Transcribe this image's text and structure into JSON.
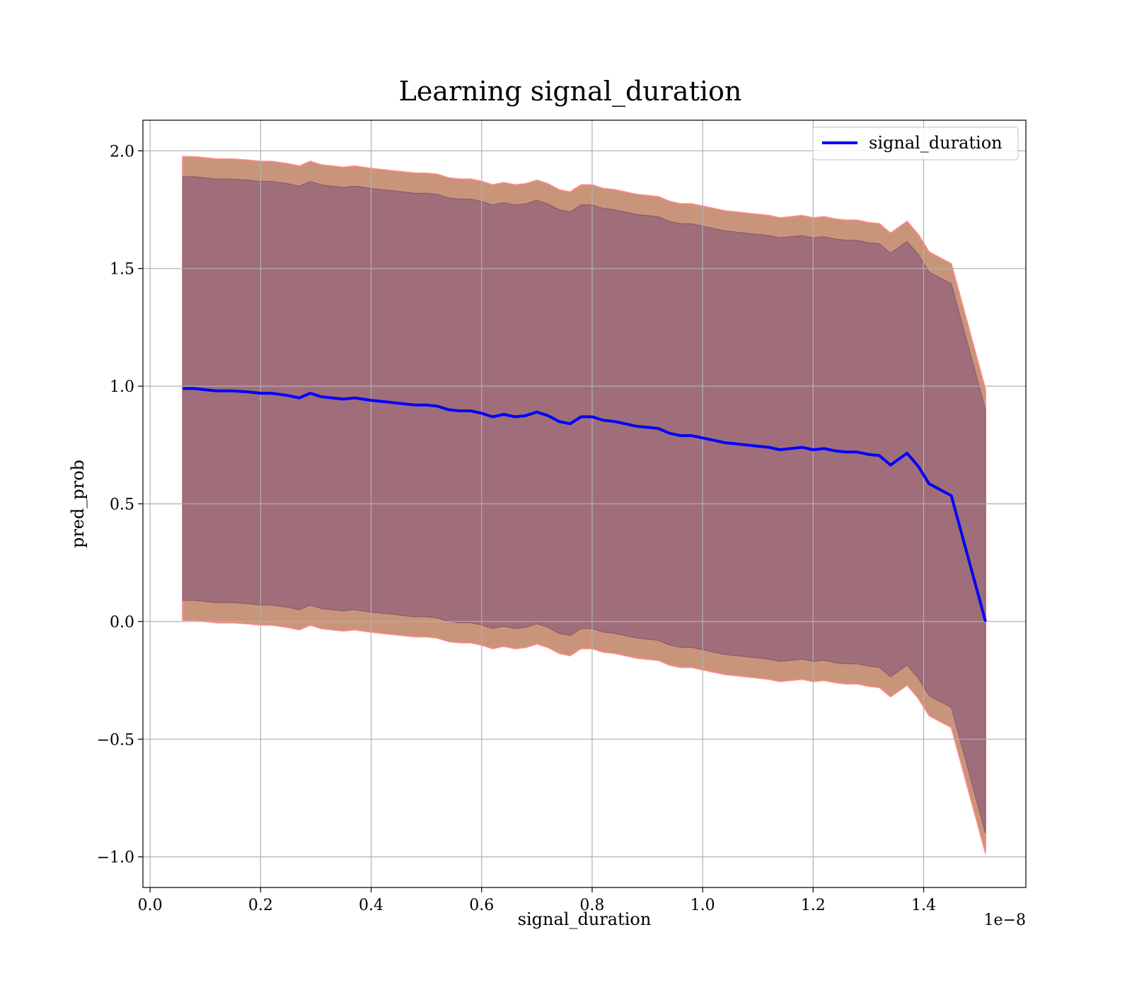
{
  "chart_data": {
    "type": "line",
    "title": "Learning signal_duration",
    "xlabel": "signal_duration",
    "ylabel": "pred_prob",
    "x_offset_label": "1e−8",
    "xlim": [
      -0.013,
      1.585
    ],
    "ylim": [
      -1.13,
      2.13
    ],
    "grid": true,
    "legend": {
      "position": "top-right",
      "entries": [
        "signal_duration"
      ]
    },
    "xticks": [
      {
        "value": 0.0,
        "label": "0.0"
      },
      {
        "value": 0.2,
        "label": "0.2"
      },
      {
        "value": 0.4,
        "label": "0.4"
      },
      {
        "value": 0.6,
        "label": "0.6"
      },
      {
        "value": 0.8,
        "label": "0.8"
      },
      {
        "value": 1.0,
        "label": "1.0"
      },
      {
        "value": 1.2,
        "label": "1.2"
      },
      {
        "value": 1.4,
        "label": "1.4"
      }
    ],
    "yticks": [
      {
        "value": -1.0,
        "label": "−1.0"
      },
      {
        "value": -0.5,
        "label": "−0.5"
      },
      {
        "value": 0.0,
        "label": "0.0"
      },
      {
        "value": 0.5,
        "label": "0.5"
      },
      {
        "value": 1.0,
        "label": "1.0"
      },
      {
        "value": 1.5,
        "label": "1.5"
      },
      {
        "value": 2.0,
        "label": "2.0"
      }
    ],
    "series": [
      {
        "name": "signal_duration",
        "color": "#0000ff",
        "x": [
          0.059,
          0.08,
          0.1,
          0.12,
          0.15,
          0.18,
          0.2,
          0.22,
          0.25,
          0.27,
          0.29,
          0.31,
          0.33,
          0.35,
          0.37,
          0.4,
          0.42,
          0.44,
          0.46,
          0.48,
          0.5,
          0.52,
          0.54,
          0.56,
          0.58,
          0.6,
          0.62,
          0.64,
          0.66,
          0.68,
          0.7,
          0.72,
          0.74,
          0.76,
          0.78,
          0.8,
          0.82,
          0.84,
          0.86,
          0.88,
          0.9,
          0.92,
          0.94,
          0.96,
          0.98,
          1.0,
          1.02,
          1.04,
          1.06,
          1.08,
          1.1,
          1.12,
          1.14,
          1.16,
          1.18,
          1.2,
          1.22,
          1.24,
          1.26,
          1.28,
          1.3,
          1.32,
          1.34,
          1.37,
          1.39,
          1.41,
          1.45,
          1.512
        ],
        "values": [
          0.99,
          0.99,
          0.985,
          0.98,
          0.98,
          0.975,
          0.97,
          0.97,
          0.96,
          0.95,
          0.97,
          0.955,
          0.95,
          0.945,
          0.95,
          0.94,
          0.935,
          0.93,
          0.925,
          0.92,
          0.92,
          0.915,
          0.9,
          0.895,
          0.895,
          0.885,
          0.87,
          0.88,
          0.87,
          0.875,
          0.89,
          0.875,
          0.85,
          0.84,
          0.87,
          0.87,
          0.855,
          0.85,
          0.84,
          0.83,
          0.825,
          0.82,
          0.8,
          0.79,
          0.79,
          0.78,
          0.77,
          0.76,
          0.755,
          0.75,
          0.745,
          0.74,
          0.73,
          0.735,
          0.74,
          0.73,
          0.735,
          0.725,
          0.72,
          0.72,
          0.71,
          0.705,
          0.665,
          0.715,
          0.66,
          0.585,
          0.535,
          0.0
        ]
      },
      {
        "name": "outer band",
        "color": "#c8957a",
        "kind": "band",
        "upper_offset": 0.985,
        "lower_offset": 0.985
      },
      {
        "name": "inner band",
        "color": "#a06e7a",
        "kind": "band",
        "upper_offset": 0.9,
        "lower_offset": 0.9
      }
    ]
  }
}
